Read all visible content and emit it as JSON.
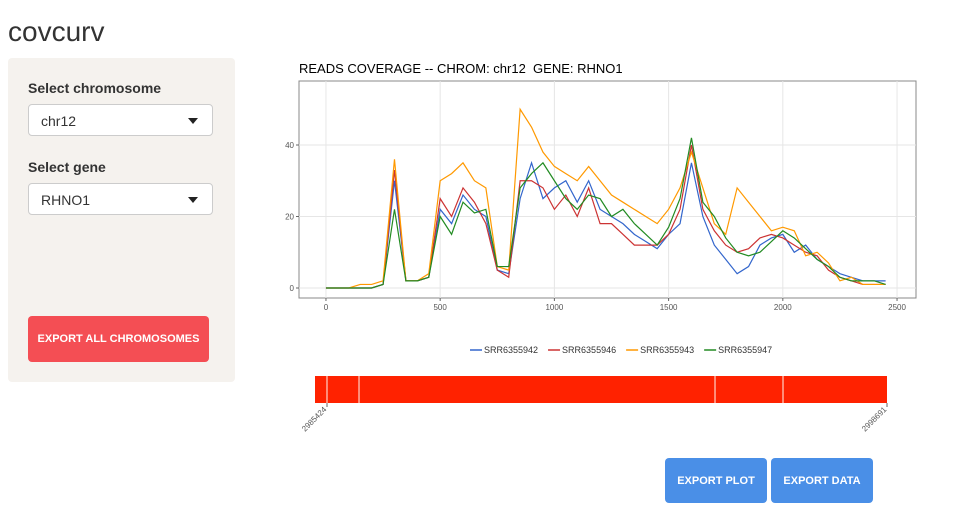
{
  "app": {
    "title": "covcurv"
  },
  "sidebar": {
    "chromosome_label": "Select chromosome",
    "chromosome_value": "chr12",
    "gene_label": "Select gene",
    "gene_value": "RHNO1",
    "export_all": "EXPORT ALL CHROMOSOMES"
  },
  "buttons": {
    "export_plot": "EXPORT PLOT",
    "export_data": "EXPORT DATA"
  },
  "chart_data": {
    "type": "line",
    "title": "READS COVERAGE -- CHROM: chr12  GENE: RHNO1",
    "x": [
      0,
      50,
      100,
      150,
      200,
      250,
      300,
      350,
      400,
      450,
      500,
      550,
      600,
      650,
      700,
      750,
      800,
      850,
      900,
      950,
      1000,
      1050,
      1100,
      1150,
      1200,
      1250,
      1300,
      1350,
      1400,
      1450,
      1500,
      1550,
      1600,
      1650,
      1700,
      1750,
      1800,
      1850,
      1900,
      1950,
      2000,
      2050,
      2100,
      2150,
      2200,
      2250,
      2300,
      2350,
      2400,
      2450
    ],
    "series": [
      {
        "name": "SRR6355942",
        "color": "#3366cc",
        "values": [
          0,
          0,
          0,
          0,
          0,
          1,
          30,
          2,
          2,
          3,
          22,
          18,
          26,
          22,
          20,
          5,
          4,
          25,
          35,
          25,
          28,
          30,
          24,
          30,
          22,
          20,
          18,
          15,
          13,
          11,
          15,
          18,
          35,
          20,
          12,
          8,
          4,
          6,
          12,
          14,
          15,
          10,
          12,
          8,
          6,
          4,
          3,
          2,
          2,
          2
        ]
      },
      {
        "name": "SRR6355946",
        "color": "#cc3333",
        "values": [
          0,
          0,
          0,
          0,
          0,
          1,
          33,
          2,
          2,
          3,
          25,
          20,
          28,
          24,
          18,
          5,
          3,
          30,
          30,
          28,
          22,
          26,
          20,
          28,
          18,
          18,
          15,
          12,
          12,
          12,
          15,
          22,
          40,
          22,
          16,
          12,
          10,
          11,
          14,
          15,
          14,
          12,
          10,
          9,
          5,
          3,
          2,
          1,
          1,
          1
        ]
      },
      {
        "name": "SRR6355943",
        "color": "#ff9900",
        "values": [
          0,
          0,
          0,
          1,
          1,
          2,
          36,
          2,
          2,
          4,
          30,
          32,
          35,
          30,
          28,
          6,
          5,
          50,
          45,
          38,
          34,
          32,
          30,
          34,
          30,
          26,
          24,
          22,
          20,
          18,
          22,
          28,
          38,
          28,
          18,
          15,
          28,
          24,
          20,
          16,
          17,
          16,
          9,
          10,
          7,
          2,
          3,
          1,
          1,
          1
        ]
      },
      {
        "name": "SRR6355947",
        "color": "#228b22",
        "values": [
          0,
          0,
          0,
          0,
          0,
          1,
          22,
          2,
          2,
          3,
          20,
          15,
          24,
          21,
          22,
          6,
          6,
          28,
          32,
          35,
          30,
          25,
          22,
          26,
          25,
          20,
          22,
          18,
          15,
          12,
          17,
          25,
          42,
          24,
          20,
          14,
          10,
          9,
          10,
          13,
          16,
          14,
          11,
          8,
          6,
          3,
          2,
          2,
          2,
          1
        ]
      }
    ],
    "xlim": [
      -118,
      2583
    ],
    "ylim": [
      -2.8,
      57.9
    ],
    "xticks": [
      0,
      500,
      1000,
      1500,
      2000,
      2500
    ],
    "yticks": [
      0,
      20,
      40
    ],
    "grid": true,
    "legend": "bottom"
  },
  "gene_track": {
    "start": 2985424,
    "end": 2998691,
    "color": "#ff2200",
    "boundaries": [
      2985702,
      2986445,
      2994702,
      2996279
    ]
  }
}
